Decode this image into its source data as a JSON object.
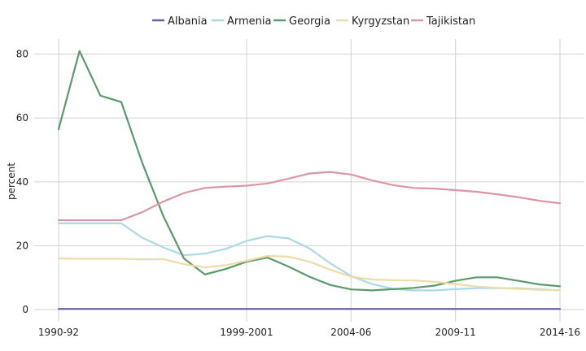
{
  "chart_data": {
    "type": "line",
    "title": "",
    "xlabel": "",
    "ylabel": "percent",
    "ylim": [
      0,
      85
    ],
    "yticks": [
      0,
      20,
      40,
      60,
      80
    ],
    "x": [
      "1990-92",
      "1991-93",
      "1992-94",
      "1993-95",
      "1994-96",
      "1995-97",
      "1996-98",
      "1997-99",
      "1998-2000",
      "1999-2001",
      "2000-02",
      "2001-03",
      "2002-04",
      "2003-05",
      "2004-06",
      "2005-07",
      "2006-08",
      "2007-09",
      "2008-10",
      "2009-11",
      "2010-12",
      "2011-13",
      "2012-14",
      "2013-15",
      "2014-16"
    ],
    "xtick_labels": {
      "0": "1990-92",
      "9": "1999-2001",
      "14": "2004-06",
      "19": "2009-11",
      "24": "2014-16"
    },
    "legend_position": "top",
    "grid": true,
    "series": [
      {
        "name": "Albania",
        "color": "#6a5fa8",
        "values": [
          0.2,
          0.2,
          0.2,
          0.2,
          0.2,
          0.2,
          0.2,
          0.2,
          0.2,
          0.2,
          0.2,
          0.2,
          0.2,
          0.2,
          0.2,
          0.2,
          0.2,
          0.2,
          0.2,
          0.2,
          0.2,
          0.2,
          0.2,
          0.2,
          0.2
        ]
      },
      {
        "name": "Armenia",
        "color": "#a9d9ea",
        "values": [
          27,
          27,
          27,
          27,
          22.5,
          19.5,
          17,
          17.5,
          19,
          21.5,
          23,
          22.3,
          19.2,
          14.5,
          10.5,
          8,
          6.5,
          6,
          6,
          6.4,
          6.7,
          6.7,
          6.7,
          6.4,
          6
        ]
      },
      {
        "name": "Georgia",
        "color": "#5a9a6b",
        "values": [
          56.5,
          81,
          67,
          65,
          46,
          29.5,
          16,
          11,
          12.7,
          15,
          16.3,
          13.5,
          10.3,
          7.7,
          6.3,
          6,
          6.4,
          6.8,
          7.5,
          9,
          10.1,
          10.1,
          9,
          7.9,
          7.3
        ]
      },
      {
        "name": "Kyrgyzstan",
        "color": "#ecdca6",
        "values": [
          16,
          15.9,
          15.9,
          15.9,
          15.7,
          15.8,
          14.2,
          13.2,
          13.9,
          15.3,
          16.8,
          16.6,
          15,
          12.5,
          10.3,
          9.4,
          9.2,
          9.1,
          8.7,
          8,
          7.2,
          6.8,
          6.5,
          6.2,
          6
        ]
      },
      {
        "name": "Tajikistan",
        "color": "#dc96a2",
        "values": [
          28,
          28,
          28,
          28,
          30.5,
          33.8,
          36.5,
          38.1,
          38.5,
          38.8,
          39.5,
          41,
          42.6,
          43.1,
          42.3,
          40.5,
          39,
          38.1,
          37.9,
          37.4,
          36.9,
          36.1,
          35.2,
          34.1,
          33.3
        ]
      }
    ]
  }
}
